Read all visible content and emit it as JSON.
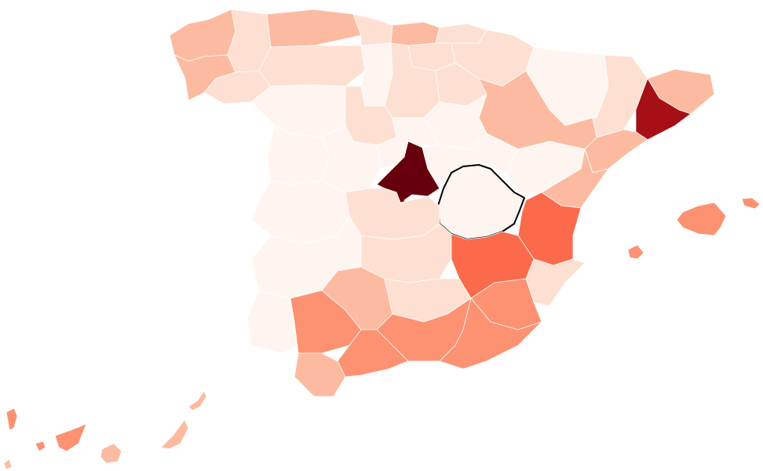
{
  "map": {
    "type": "choropleth",
    "palette": [
      "#fff5f0",
      "#fee0d2",
      "#fcbba1",
      "#fc9272",
      "#fb6a4a",
      "#de2d26",
      "#a50f15",
      "#67000d"
    ],
    "selected_region": "region-cuenca",
    "regions": [
      {
        "id": "region-a-coruna",
        "level": 2
      },
      {
        "id": "region-lugo",
        "level": 1
      },
      {
        "id": "region-pontevedra",
        "level": 2
      },
      {
        "id": "region-ourense",
        "level": 1
      },
      {
        "id": "region-asturias",
        "level": 2
      },
      {
        "id": "region-cantabria",
        "level": 1
      },
      {
        "id": "region-bizkaia",
        "level": 2
      },
      {
        "id": "region-gipuzkoa",
        "level": 1
      },
      {
        "id": "region-araba",
        "level": 1
      },
      {
        "id": "region-navarra",
        "level": 1
      },
      {
        "id": "region-leon",
        "level": 1
      },
      {
        "id": "region-palencia",
        "level": 0
      },
      {
        "id": "region-burgos",
        "level": 1
      },
      {
        "id": "region-la-rioja",
        "level": 1
      },
      {
        "id": "region-huesca",
        "level": 0
      },
      {
        "id": "region-lleida",
        "level": 1
      },
      {
        "id": "region-girona",
        "level": 2
      },
      {
        "id": "region-barcelona",
        "level": 6
      },
      {
        "id": "region-tarragona",
        "level": 2
      },
      {
        "id": "region-zaragoza",
        "level": 2
      },
      {
        "id": "region-teruel",
        "level": 0
      },
      {
        "id": "region-castellon",
        "level": 2
      },
      {
        "id": "region-valencia",
        "level": 4
      },
      {
        "id": "region-alicante",
        "level": 1
      },
      {
        "id": "region-murcia",
        "level": 3
      },
      {
        "id": "region-zamora",
        "level": 0
      },
      {
        "id": "region-valladolid",
        "level": 1
      },
      {
        "id": "region-soria",
        "level": 0
      },
      {
        "id": "region-salamanca",
        "level": 0
      },
      {
        "id": "region-avila",
        "level": 0
      },
      {
        "id": "region-segovia",
        "level": 0
      },
      {
        "id": "region-madrid",
        "level": 7
      },
      {
        "id": "region-guadalajara",
        "level": 0
      },
      {
        "id": "region-cuenca",
        "level": 0
      },
      {
        "id": "region-caceres",
        "level": 0
      },
      {
        "id": "region-toledo",
        "level": 1
      },
      {
        "id": "region-ciudad-real",
        "level": 1
      },
      {
        "id": "region-albacete",
        "level": 4
      },
      {
        "id": "region-badajoz",
        "level": 0
      },
      {
        "id": "region-huelva",
        "level": 0
      },
      {
        "id": "region-sevilla",
        "level": 3
      },
      {
        "id": "region-cordoba",
        "level": 2
      },
      {
        "id": "region-jaen",
        "level": 1
      },
      {
        "id": "region-cadiz",
        "level": 2
      },
      {
        "id": "region-malaga",
        "level": 3
      },
      {
        "id": "region-granada",
        "level": 3
      },
      {
        "id": "region-almeria",
        "level": 3
      },
      {
        "id": "region-mallorca",
        "level": 3
      },
      {
        "id": "region-menorca",
        "level": 3
      },
      {
        "id": "region-ibiza",
        "level": 3
      },
      {
        "id": "region-tenerife",
        "level": 3
      },
      {
        "id": "region-gran-canaria",
        "level": 2
      },
      {
        "id": "region-fuerteventura",
        "level": 2
      },
      {
        "id": "region-lanzarote",
        "level": 2
      },
      {
        "id": "region-la-palma",
        "level": 3
      },
      {
        "id": "region-la-gomera",
        "level": 3
      },
      {
        "id": "region-el-hierro",
        "level": 2
      }
    ]
  }
}
